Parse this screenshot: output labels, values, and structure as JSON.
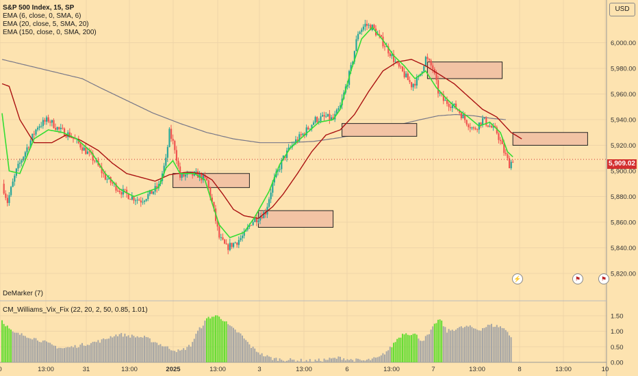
{
  "header": {
    "title": "S&P 500 Index, 15, SP",
    "indicators": [
      "EMA (6, close, 0, SMA, 6)",
      "EMA (20, close, 5, SMA, 20)",
      "EMA (150, close, 0, SMA, 200)"
    ],
    "currency_button": "USD",
    "last_price": "5,909.02"
  },
  "sub_panels": {
    "demarker_label": "DeMarker (7)",
    "vix_label": "CM_Williams_Vix_Fix (22, 20, 2, 50, 0.85, 1.01)"
  },
  "colors": {
    "background": "#fde3b0",
    "up": "#26a69a",
    "down": "#ef5350",
    "ema6": "#33dd33",
    "ema20": "#aa1111",
    "ema150": "#777788",
    "zone_fill": "#f2c3a4",
    "vix_gray": "#a6a6a6",
    "vix_green": "#66dd33"
  },
  "chart_data": {
    "type": "candlestick",
    "price_axis": {
      "ylim": [
        5812,
        6028
      ],
      "ticks": [
        "6,000.00",
        "5,980.00",
        "5,960.00",
        "5,940.00",
        "5,920.00",
        "5,900.00",
        "5,880.00",
        "5,860.00",
        "5,840.00",
        "5,820.00"
      ],
      "tick_values": [
        6000,
        5980,
        5960,
        5940,
        5920,
        5900,
        5880,
        5860,
        5840,
        5820
      ]
    },
    "x_ticks": [
      "0",
      "13:00",
      "31",
      "13:00",
      "2025",
      "13:00",
      "3",
      "13:00",
      "6",
      "13:00",
      "7",
      "13:00",
      "8",
      "13:00",
      "10"
    ],
    "x_tick_bold": [
      false,
      false,
      false,
      false,
      true,
      false,
      false,
      false,
      false,
      false,
      false,
      false,
      false,
      false,
      false
    ],
    "path_anchors": [
      [
        0,
        5890
      ],
      [
        3,
        5876
      ],
      [
        8,
        5900
      ],
      [
        14,
        5918
      ],
      [
        20,
        5935
      ],
      [
        26,
        5940
      ],
      [
        32,
        5932
      ],
      [
        38,
        5928
      ],
      [
        44,
        5920
      ],
      [
        52,
        5908
      ],
      [
        58,
        5895
      ],
      [
        66,
        5885
      ],
      [
        72,
        5880
      ],
      [
        78,
        5877
      ],
      [
        83,
        5882
      ],
      [
        88,
        5888
      ],
      [
        92,
        5908
      ],
      [
        94,
        5930
      ],
      [
        97,
        5918
      ],
      [
        100,
        5895
      ],
      [
        104,
        5897
      ],
      [
        110,
        5897
      ],
      [
        115,
        5892
      ],
      [
        118,
        5875
      ],
      [
        122,
        5848
      ],
      [
        126,
        5840
      ],
      [
        132,
        5845
      ],
      [
        136,
        5850
      ],
      [
        140,
        5860
      ],
      [
        148,
        5868
      ],
      [
        152,
        5890
      ],
      [
        158,
        5910
      ],
      [
        164,
        5922
      ],
      [
        170,
        5930
      ],
      [
        176,
        5940
      ],
      [
        182,
        5942
      ],
      [
        186,
        5940
      ],
      [
        190,
        5950
      ],
      [
        196,
        5980
      ],
      [
        200,
        6008
      ],
      [
        204,
        6014
      ],
      [
        208,
        6012
      ],
      [
        213,
        6002
      ],
      [
        218,
        5992
      ],
      [
        222,
        5982
      ],
      [
        226,
        5975
      ],
      [
        230,
        5967
      ],
      [
        234,
        5972
      ],
      [
        238,
        5988
      ],
      [
        242,
        5980
      ],
      [
        245,
        5962
      ],
      [
        248,
        5955
      ],
      [
        252,
        5952
      ],
      [
        256,
        5948
      ],
      [
        260,
        5940
      ],
      [
        265,
        5932
      ],
      [
        270,
        5940
      ],
      [
        274,
        5935
      ],
      [
        278,
        5930
      ],
      [
        282,
        5915
      ],
      [
        285,
        5905
      ],
      [
        287,
        5909
      ]
    ],
    "ema6_anchors": [
      [
        0,
        5945
      ],
      [
        4,
        5900
      ],
      [
        10,
        5898
      ],
      [
        18,
        5925
      ],
      [
        26,
        5932
      ],
      [
        34,
        5930
      ],
      [
        42,
        5925
      ],
      [
        50,
        5915
      ],
      [
        58,
        5898
      ],
      [
        66,
        5886
      ],
      [
        74,
        5880
      ],
      [
        82,
        5884
      ],
      [
        88,
        5887
      ],
      [
        92,
        5902
      ],
      [
        96,
        5908
      ],
      [
        100,
        5898
      ],
      [
        108,
        5898
      ],
      [
        114,
        5893
      ],
      [
        118,
        5875
      ],
      [
        122,
        5858
      ],
      [
        128,
        5848
      ],
      [
        136,
        5852
      ],
      [
        142,
        5864
      ],
      [
        150,
        5884
      ],
      [
        156,
        5905
      ],
      [
        162,
        5918
      ],
      [
        170,
        5928
      ],
      [
        178,
        5938
      ],
      [
        186,
        5940
      ],
      [
        190,
        5948
      ],
      [
        196,
        5978
      ],
      [
        202,
        6003
      ],
      [
        208,
        6012
      ],
      [
        214,
        6002
      ],
      [
        220,
        5990
      ],
      [
        226,
        5982
      ],
      [
        232,
        5972
      ],
      [
        238,
        5978
      ],
      [
        244,
        5965
      ],
      [
        250,
        5956
      ],
      [
        256,
        5948
      ],
      [
        262,
        5942
      ],
      [
        268,
        5935
      ],
      [
        274,
        5938
      ],
      [
        280,
        5930
      ],
      [
        284,
        5915
      ],
      [
        287,
        5911
      ]
    ],
    "ema20_anchors": [
      [
        0,
        5968
      ],
      [
        4,
        5966
      ],
      [
        10,
        5940
      ],
      [
        18,
        5922
      ],
      [
        28,
        5922
      ],
      [
        36,
        5928
      ],
      [
        44,
        5924
      ],
      [
        54,
        5916
      ],
      [
        62,
        5906
      ],
      [
        70,
        5898
      ],
      [
        78,
        5895
      ],
      [
        86,
        5892
      ],
      [
        94,
        5897
      ],
      [
        104,
        5899
      ],
      [
        112,
        5898
      ],
      [
        118,
        5893
      ],
      [
        124,
        5882
      ],
      [
        130,
        5870
      ],
      [
        136,
        5865
      ],
      [
        144,
        5863
      ],
      [
        152,
        5872
      ],
      [
        158,
        5882
      ],
      [
        166,
        5898
      ],
      [
        174,
        5915
      ],
      [
        182,
        5928
      ],
      [
        190,
        5932
      ],
      [
        198,
        5944
      ],
      [
        206,
        5962
      ],
      [
        214,
        5978
      ],
      [
        222,
        5985
      ],
      [
        230,
        5987
      ],
      [
        238,
        5982
      ],
      [
        246,
        5975
      ],
      [
        254,
        5968
      ],
      [
        262,
        5958
      ],
      [
        270,
        5948
      ],
      [
        278,
        5942
      ],
      [
        286,
        5930
      ],
      [
        292,
        5925
      ]
    ],
    "ema150_anchors": [
      [
        0,
        5987
      ],
      [
        15,
        5982
      ],
      [
        30,
        5977
      ],
      [
        45,
        5972
      ],
      [
        55,
        5965
      ],
      [
        70,
        5955
      ],
      [
        85,
        5945
      ],
      [
        100,
        5937
      ],
      [
        115,
        5930
      ],
      [
        130,
        5925
      ],
      [
        145,
        5922
      ],
      [
        160,
        5922
      ],
      [
        175,
        5923
      ],
      [
        190,
        5926
      ],
      [
        205,
        5930
      ],
      [
        220,
        5935
      ],
      [
        235,
        5940
      ],
      [
        245,
        5943
      ],
      [
        255,
        5944
      ],
      [
        265,
        5943
      ],
      [
        275,
        5941
      ],
      [
        283,
        5940
      ]
    ],
    "zones": [
      [
        96,
        5898,
        139,
        5887
      ],
      [
        144,
        5869,
        186,
        5856
      ],
      [
        191,
        5937,
        233,
        5927
      ],
      [
        239,
        5985,
        281,
        5972
      ],
      [
        287,
        5930,
        329,
        5920
      ]
    ],
    "vix_scale": {
      "ylim": [
        0,
        1.65
      ],
      "ticks": [
        "1.50",
        "1.00",
        "0.50",
        "0.00"
      ],
      "tick_values": [
        1.5,
        1.0,
        0.5,
        0.0
      ]
    },
    "vix_anchors": [
      [
        0,
        1.35
      ],
      [
        6,
        0.95
      ],
      [
        14,
        0.85
      ],
      [
        22,
        0.7
      ],
      [
        28,
        0.55
      ],
      [
        34,
        0.45
      ],
      [
        40,
        0.5
      ],
      [
        48,
        0.6
      ],
      [
        56,
        0.7
      ],
      [
        62,
        0.85
      ],
      [
        66,
        0.9
      ],
      [
        72,
        0.85
      ],
      [
        80,
        0.8
      ],
      [
        88,
        0.6
      ],
      [
        94,
        0.45
      ],
      [
        100,
        0.35
      ],
      [
        106,
        0.55
      ],
      [
        110,
        1.0
      ],
      [
        116,
        1.45
      ],
      [
        122,
        1.5
      ],
      [
        128,
        1.15
      ],
      [
        134,
        0.9
      ],
      [
        140,
        0.5
      ],
      [
        146,
        0.25
      ],
      [
        152,
        0.12
      ],
      [
        160,
        0.08
      ],
      [
        168,
        0.06
      ],
      [
        176,
        0.05
      ],
      [
        184,
        0.1
      ],
      [
        190,
        0.15
      ],
      [
        196,
        0.08
      ],
      [
        204,
        0.05
      ],
      [
        212,
        0.15
      ],
      [
        218,
        0.45
      ],
      [
        222,
        0.75
      ],
      [
        226,
        0.95
      ],
      [
        232,
        0.9
      ],
      [
        236,
        0.7
      ],
      [
        240,
        0.9
      ],
      [
        244,
        1.3
      ],
      [
        246,
        1.38
      ],
      [
        250,
        1.0
      ],
      [
        256,
        1.1
      ],
      [
        262,
        1.15
      ],
      [
        268,
        1.05
      ],
      [
        274,
        1.2
      ],
      [
        280,
        1.15
      ],
      [
        284,
        1.0
      ],
      [
        286,
        0.82
      ]
    ],
    "vix_green_ranges": [
      [
        0,
        5
      ],
      [
        115,
        126
      ],
      [
        219,
        233
      ],
      [
        243,
        247
      ]
    ]
  }
}
